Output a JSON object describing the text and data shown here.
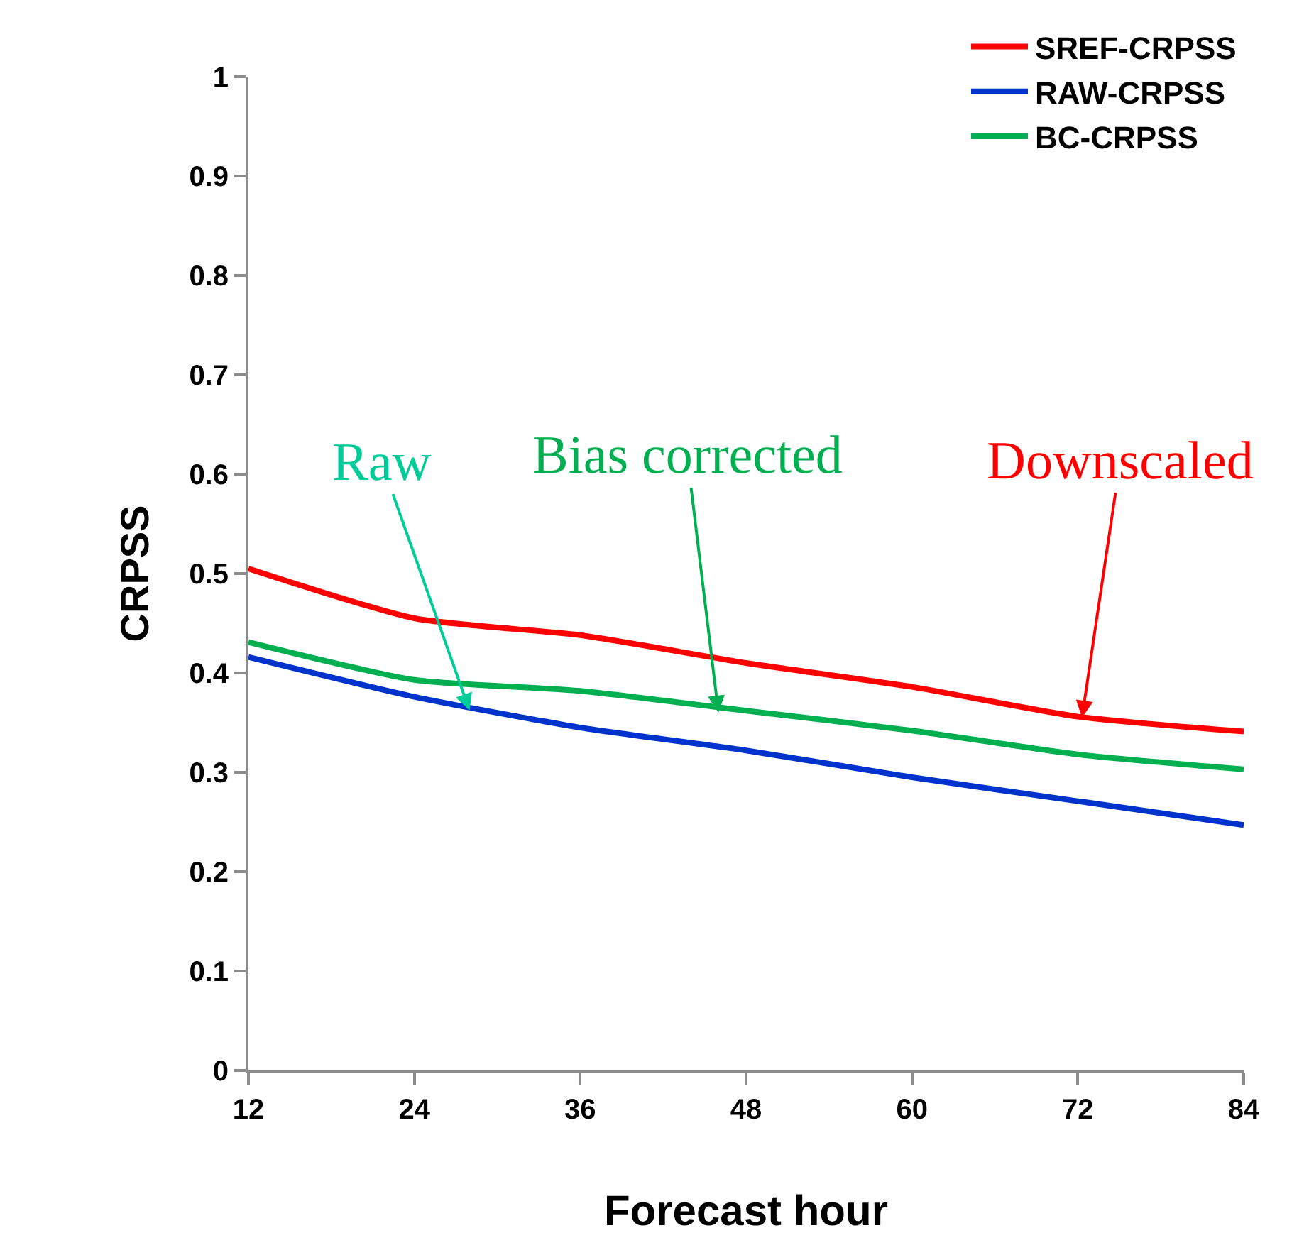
{
  "chart_data": {
    "type": "line",
    "xlabel": "Forecast hour",
    "ylabel": "CRPSS",
    "x": [
      12,
      24,
      36,
      48,
      60,
      72,
      84
    ],
    "series": [
      {
        "name": "SREF-CRPSS",
        "color": "#ff0000",
        "values": [
          0.505,
          0.455,
          0.438,
          0.41,
          0.386,
          0.356,
          0.341
        ]
      },
      {
        "name": "RAW-CRPSS",
        "color": "#0033cc",
        "values": [
          0.416,
          0.376,
          0.345,
          0.322,
          0.295,
          0.271,
          0.247
        ]
      },
      {
        "name": "BC-CRPSS",
        "color": "#00b050",
        "values": [
          0.431,
          0.393,
          0.382,
          0.362,
          0.342,
          0.318,
          0.303
        ]
      }
    ],
    "annotations": [
      {
        "text": "Raw",
        "x": 28,
        "y": 0.362
      },
      {
        "text": "Bias corrected",
        "x": 46,
        "y": 0.36
      },
      {
        "text": "Downscaled",
        "x": 72.3,
        "y": 0.355
      }
    ],
    "xlim": [
      12,
      84
    ],
    "xticks": [
      12,
      24,
      36,
      48,
      60,
      72,
      84
    ],
    "ylim": [
      0,
      1
    ],
    "yticks": [
      0,
      0.1,
      0.2,
      0.3,
      0.4,
      0.5,
      0.6,
      0.7,
      0.8,
      0.9,
      1
    ],
    "legend": "top right",
    "marker": "none",
    "line_style": "solid"
  }
}
